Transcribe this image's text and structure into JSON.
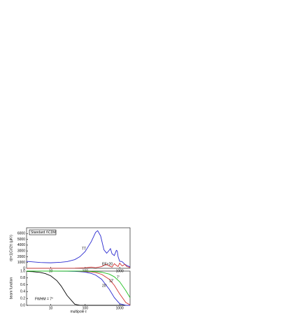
{
  "chart_data": [
    {
      "type": "line",
      "ylabel": "ℓ(ℓ+1)Cℓ/2π (μK²)",
      "legend_title": "Standard ΛCDM",
      "log_x": true,
      "xlim": [
        2,
        2000
      ],
      "xticks": [
        10,
        100,
        1000
      ],
      "ylim": [
        0,
        7000
      ],
      "yticks": [
        0,
        1000,
        2000,
        3000,
        4000,
        5000,
        6000
      ],
      "series": [
        {
          "name": "TT",
          "color": "#2b2bd0",
          "x": [
            2,
            5,
            10,
            20,
            30,
            50,
            70,
            100,
            150,
            200,
            230,
            280,
            350,
            420,
            480,
            540,
            600,
            700,
            800,
            850,
            900,
            1000,
            1100,
            1200,
            1400,
            1600,
            2000
          ],
          "values": [
            1200,
            1000,
            950,
            1050,
            1150,
            1500,
            2000,
            2900,
            4600,
            6200,
            6500,
            5600,
            3200,
            2600,
            3000,
            3400,
            2500,
            2200,
            3100,
            3000,
            2000,
            1200,
            1200,
            1100,
            700,
            500,
            250
          ]
        },
        {
          "name": "EE×20",
          "color": "#d03030",
          "x": [
            2,
            10,
            50,
            100,
            150,
            200,
            300,
            400,
            500,
            600,
            700,
            800,
            900,
            1000,
            1100,
            1200,
            1400,
            1600,
            2000
          ],
          "values": [
            10,
            5,
            20,
            80,
            200,
            100,
            300,
            700,
            400,
            200,
            800,
            500,
            300,
            900,
            600,
            400,
            700,
            300,
            150
          ]
        }
      ]
    },
    {
      "type": "line",
      "xlabel": "multipole ℓ",
      "ylabel": "beam function",
      "log_x": true,
      "xlim": [
        2,
        2000
      ],
      "xticks": [
        10,
        100,
        1000
      ],
      "ylim": [
        0,
        1
      ],
      "yticks": [
        {
          "value": 0,
          "label": "0.0"
        },
        0.2,
        0.4,
        0.6,
        0.8,
        {
          "value": 1,
          "label": "1.0"
        }
      ],
      "series": [
        {
          "name": "FWHM = 7°",
          "color": "#000000",
          "x": [
            2,
            3,
            5,
            7,
            10,
            15,
            20,
            30,
            50,
            70,
            100,
            200,
            500,
            1000,
            2000
          ],
          "values": [
            0.992,
            0.984,
            0.96,
            0.927,
            0.862,
            0.724,
            0.568,
            0.285,
            0.032,
            0.001,
            0,
            0,
            0,
            0,
            0
          ]
        },
        {
          "name": "20'",
          "color": "#2b2bd0",
          "x": [
            2,
            10,
            30,
            50,
            70,
            100,
            150,
            200,
            300,
            500,
            700,
            1000,
            1500,
            2000
          ],
          "values": [
            1,
            1,
            0.997,
            0.992,
            0.985,
            0.97,
            0.933,
            0.885,
            0.76,
            0.467,
            0.225,
            0.047,
            0.001,
            0
          ]
        },
        {
          "name": "12'",
          "color": "#d03030",
          "x": [
            2,
            10,
            50,
            100,
            150,
            200,
            300,
            500,
            700,
            1000,
            1500,
            2000
          ],
          "values": [
            1,
            1,
            1,
            0.989,
            0.976,
            0.957,
            0.906,
            0.76,
            0.584,
            0.333,
            0.084,
            0.012
          ]
        },
        {
          "name": "7'",
          "color": "#20c020",
          "x": [
            2,
            10,
            100,
            200,
            300,
            500,
            700,
            1000,
            1500,
            2000
          ],
          "values": [
            1,
            1,
            1,
            0.985,
            0.967,
            0.911,
            0.833,
            0.689,
            0.432,
            0.225
          ]
        }
      ]
    }
  ]
}
